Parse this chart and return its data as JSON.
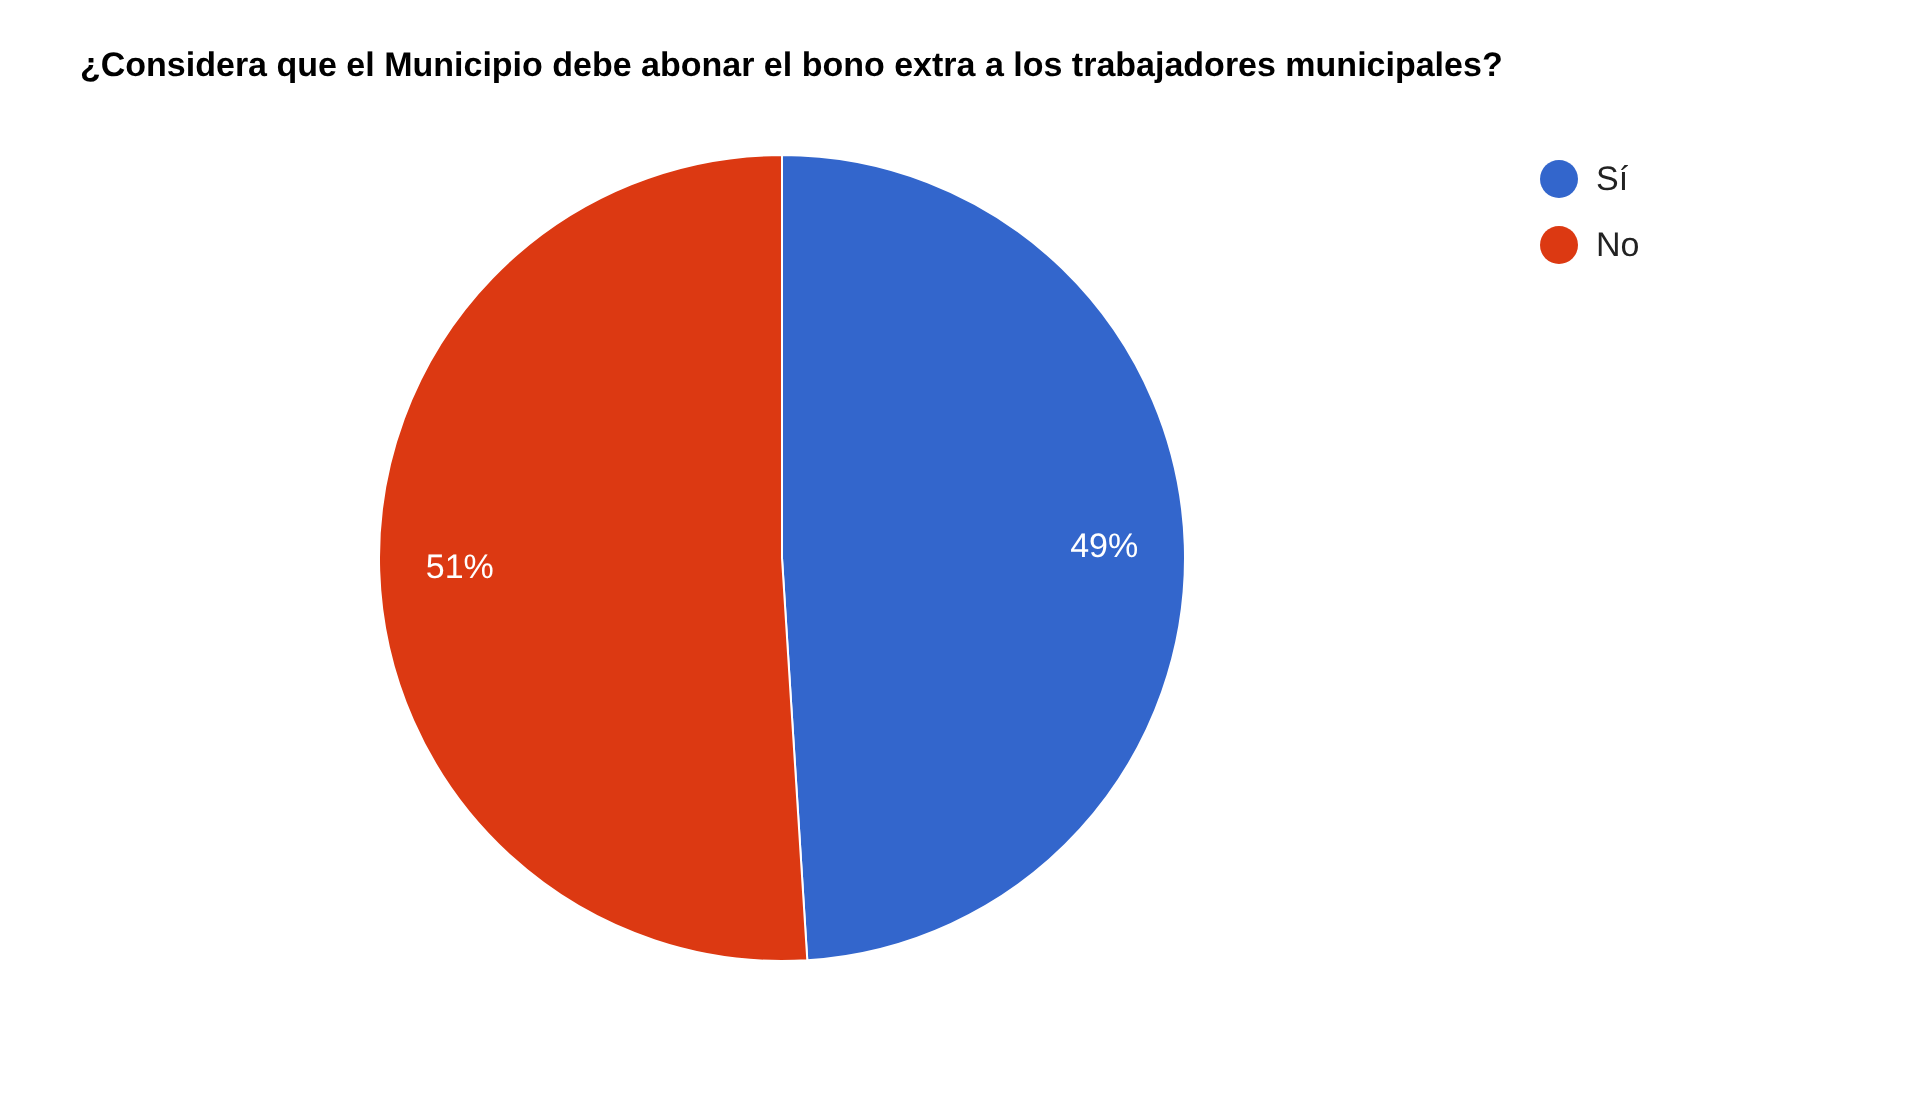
{
  "chart_data": {
    "type": "pie",
    "title": "¿Considera que el Municipio debe abonar el bono extra a los trabajadores municipales?",
    "categories": [
      "Sí",
      "No"
    ],
    "values": [
      49,
      51
    ],
    "colors": [
      "#3366cc",
      "#dc3912"
    ],
    "value_labels": [
      "49%",
      "51%"
    ],
    "legend": "top right"
  }
}
